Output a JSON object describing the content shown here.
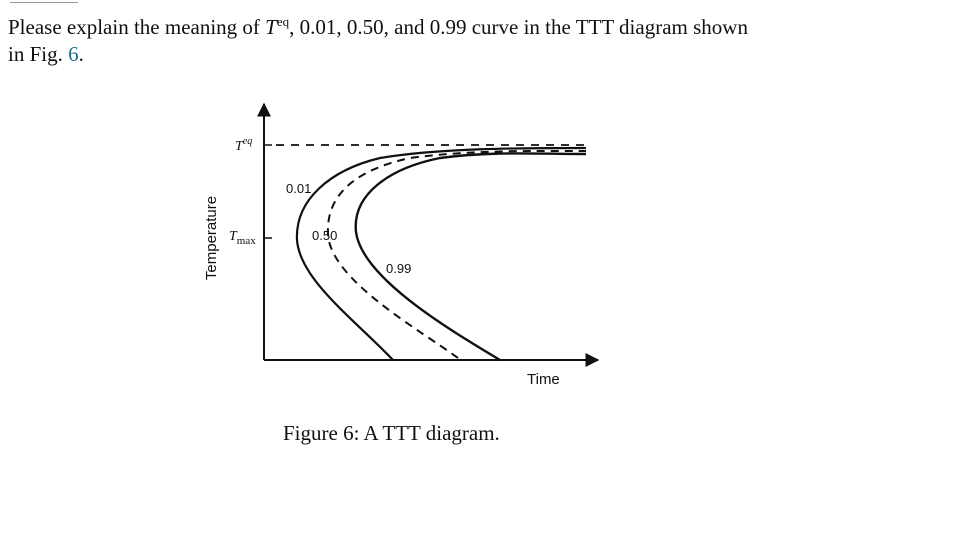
{
  "question": {
    "text_before": "Please explain the meaning of ",
    "t_symbol": "T",
    "t_superscript": "eq",
    "text_after": ", 0.01, 0.50, and 0.99 curve in the TTT diagram shown",
    "line2_prefix": "in Fig. ",
    "figure_ref": "6",
    "line2_suffix": "."
  },
  "figure": {
    "y_axis_label": "Temperature",
    "x_axis_label": "Time",
    "teq_label": "T",
    "teq_sup": "eq",
    "tmax_label": "T",
    "tmax_sub": "max",
    "curve_labels": [
      "0.01",
      "0.50",
      "0.99"
    ],
    "caption": "Figure 6:  A TTT diagram."
  }
}
